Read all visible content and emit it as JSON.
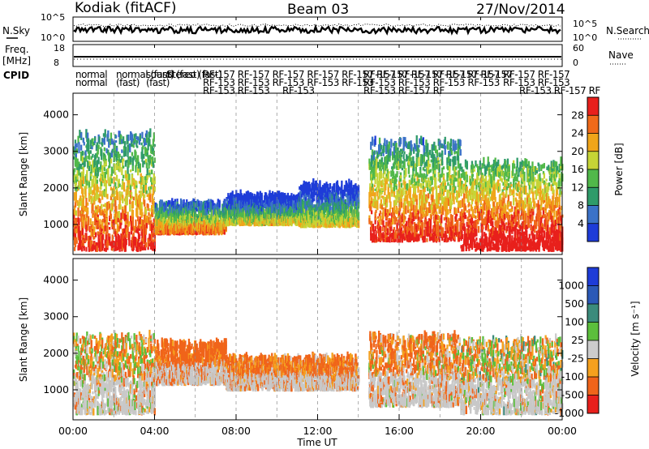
{
  "header": {
    "station": "Kodiak (fitACF)",
    "beam": "Beam 03",
    "date": "27/Nov/2014"
  },
  "noise_panel": {
    "left_label": "N.Sky",
    "right_label": "N.Search",
    "left_ticks": [
      "10^5",
      "10^0"
    ],
    "right_ticks": [
      "10^5",
      "10^0"
    ]
  },
  "freq_panel": {
    "left_label_line1": "Freq.",
    "left_label_line2": "[MHz]",
    "right_label": "Nave",
    "left_ticks": [
      "18",
      "8"
    ],
    "right_ticks": [
      "60",
      "0"
    ]
  },
  "cpid": {
    "label": "CPID",
    "row1": [
      "normal",
      "normal (fast)",
      "sound (fast)",
      "Stereo (fast)",
      "RF-157 RF-157 RF-157 RF-157 RF-157 RF-157 RF-157 RF-157 RF-157",
      "RF-157 RF-157 RF-157 RF-157",
      "RF-157 RF-157"
    ],
    "row2": [
      "normal",
      "(fast)",
      "(fast)",
      "RF-153 RF-153 RF-153 RF-153 RF-153",
      "RF-153 RF-153 RF-153 RF-153",
      "RF-153 RF-153",
      "RF-153 RF-157 RF"
    ],
    "row3": [
      "RF-153 RF-153",
      "RF-153",
      "RF-153 RF-157 RF",
      "RF-153 RF-157 RF"
    ]
  },
  "power_panel": {
    "ylabel": "Slant Range [km]",
    "yticks": [
      "4000",
      "3000",
      "2000",
      "1000"
    ],
    "colorbar_label": "Power [dB]",
    "colorbar_ticks": [
      "28",
      "24",
      "20",
      "16",
      "12",
      "8",
      "4"
    ]
  },
  "velocity_panel": {
    "ylabel": "Slant Range [km]",
    "yticks": [
      "4000",
      "3000",
      "2000",
      "1000"
    ],
    "colorbar_label": "Velocity [m s⁻¹]",
    "colorbar_ticks": [
      "1000",
      "500",
      "100",
      "25",
      "-25",
      "-100",
      "-500",
      "-1000"
    ]
  },
  "x_axis": {
    "ticks": [
      "00:00",
      "04:00",
      "08:00",
      "12:00",
      "16:00",
      "20:00",
      "00:00"
    ],
    "label": "Time UT"
  },
  "chart_data": {
    "type": "heatmap",
    "title": "Kodiak (fitACF)",
    "x_range_hours": [
      0,
      24
    ],
    "y_range_km": [
      180,
      4590
    ],
    "x_ticks_hours": [
      0,
      4,
      8,
      12,
      16,
      20,
      24
    ],
    "y_ticks_km": [
      1000,
      2000,
      3000,
      4000
    ],
    "power_scale_db": [
      0,
      30
    ],
    "velocity_scale_ms": [
      -1000,
      1000
    ],
    "power_colors": [
      "#1e3cd8",
      "#3b72c8",
      "#2f9b6a",
      "#51b84a",
      "#c6d436",
      "#f0a51a",
      "#f06a1a",
      "#e8201c"
    ],
    "velocity_colors": [
      "#e8201c",
      "#f0641a",
      "#f5a01e",
      "#cccccc",
      "#5cbf3c",
      "#3b8b7c",
      "#2b59b7",
      "#1e3cd8"
    ],
    "power_echo_regions": [
      {
        "t_start": 0.0,
        "t_end": 4.0,
        "r_min": 250,
        "r_max": 3400,
        "mean_db": 18
      },
      {
        "t_start": 4.0,
        "t_end": 7.5,
        "r_min": 700,
        "r_max": 1500,
        "mean_db": 14
      },
      {
        "t_start": 7.5,
        "t_end": 11.0,
        "r_min": 950,
        "r_max": 1700,
        "mean_db": 8
      },
      {
        "t_start": 11.0,
        "t_end": 14.0,
        "r_min": 900,
        "r_max": 2000,
        "mean_db": 8
      },
      {
        "t_start": 14.5,
        "t_end": 19.0,
        "r_min": 500,
        "r_max": 3200,
        "mean_db": 18
      },
      {
        "t_start": 19.0,
        "t_end": 24.0,
        "r_min": 250,
        "r_max": 2600,
        "mean_db": 22
      }
    ],
    "velocity_echo_regions": [
      {
        "t_start": 0.0,
        "t_end": 4.0,
        "r_min": 300,
        "r_max": 2400,
        "mean_ms": -50
      },
      {
        "t_start": 4.0,
        "t_end": 7.5,
        "r_min": 1100,
        "r_max": 2200,
        "mean_ms": -200
      },
      {
        "t_start": 7.5,
        "t_end": 14.0,
        "r_min": 950,
        "r_max": 1800,
        "mean_ms": -150
      },
      {
        "t_start": 14.5,
        "t_end": 19.0,
        "r_min": 500,
        "r_max": 2400,
        "mean_ms": -100
      },
      {
        "t_start": 19.0,
        "t_end": 24.0,
        "r_min": 300,
        "r_max": 2300,
        "mean_ms": -30
      }
    ]
  }
}
